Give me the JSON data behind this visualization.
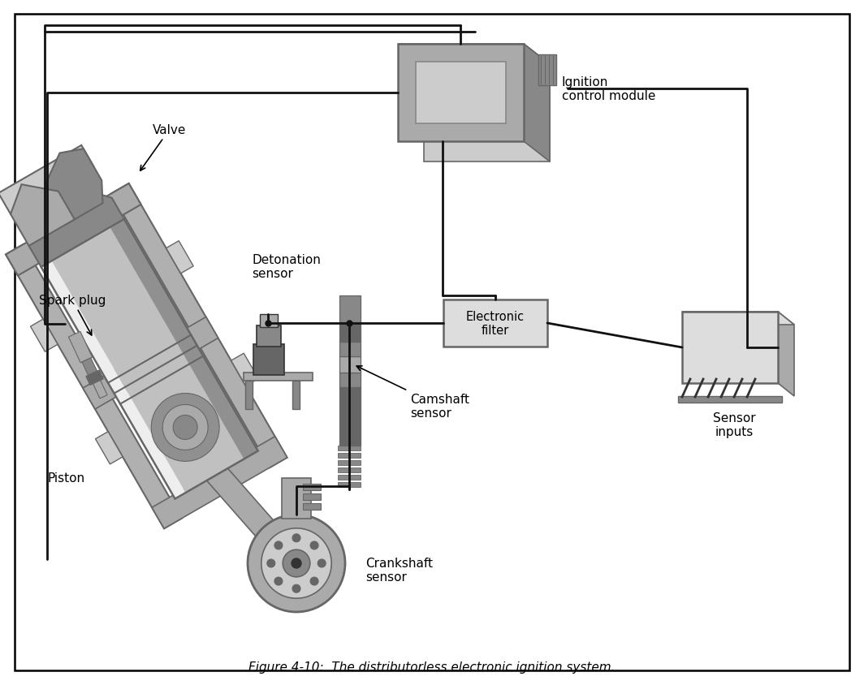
{
  "title": "Figure 4-10:  The distributorless electronic ignition system.",
  "bg_color": "#ffffff",
  "labels": {
    "valve": "Valve",
    "spark_plug": "Spark plug",
    "piston": "Piston",
    "detonation_sensor": "Detonation\nsensor",
    "electronic_filter": "Electronic\nfilter",
    "camshaft_sensor": "Camshaft\nsensor",
    "crankshaft_sensor": "Crankshaft\nsensor",
    "ignition_control_module": "Ignition\ncontrol module",
    "sensor_inputs": "Sensor\ninputs"
  },
  "colors": {
    "dark": "#333333",
    "mid_dark": "#666666",
    "mid": "#888888",
    "light_mid": "#aaaaaa",
    "light": "#cccccc",
    "very_light": "#dddddd",
    "lightest": "#eeeeee",
    "white": "#ffffff",
    "wire": "#111111",
    "engine_silver": "#c0c0c0",
    "engine_dark_silver": "#909090",
    "engine_frame": "#b0b0b0"
  },
  "font_size": 11,
  "figsize": [
    10.64,
    8.45
  ],
  "dpi": 100
}
